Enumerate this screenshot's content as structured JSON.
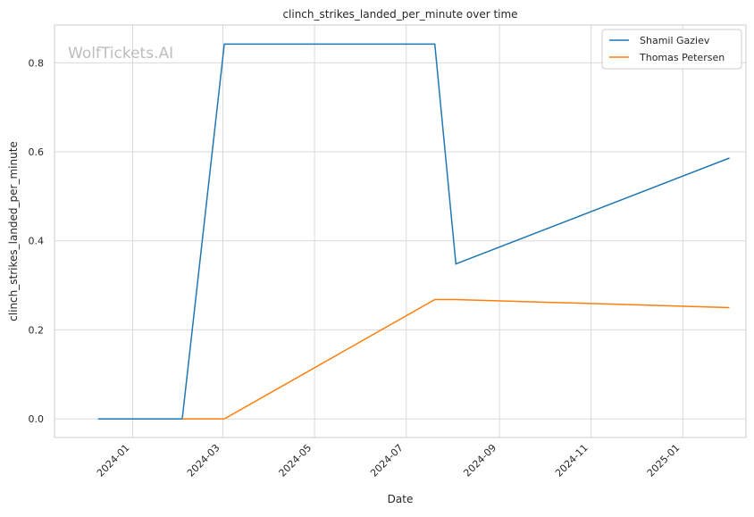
{
  "chart_data": {
    "type": "line",
    "title": "clinch_strikes_landed_per_minute over time",
    "xlabel": "Date",
    "ylabel": "clinch_strikes_landed_per_minute",
    "watermark": "WolfTickets.AI",
    "xlim": [
      "2023-11-10",
      "2025-02-12"
    ],
    "ylim": [
      -0.042,
      0.885
    ],
    "x_ticks": [
      "2024-01",
      "2024-03",
      "2024-05",
      "2024-07",
      "2024-09",
      "2024-11",
      "2025-01"
    ],
    "y_ticks": [
      "0.0",
      "0.2",
      "0.4",
      "0.6",
      "0.8"
    ],
    "grid": true,
    "legend_position": "top-right",
    "series": [
      {
        "name": "Shamil Gaziev",
        "color": "#1f77b4",
        "points": [
          {
            "x": "2023-12-09",
            "y": 0.0
          },
          {
            "x": "2024-02-03",
            "y": 0.0
          },
          {
            "x": "2024-03-02",
            "y": 0.842
          },
          {
            "x": "2024-07-20",
            "y": 0.842
          },
          {
            "x": "2024-08-03",
            "y": 0.348
          },
          {
            "x": "2025-02-01",
            "y": 0.586
          }
        ]
      },
      {
        "name": "Thomas Petersen",
        "color": "#ff7f0e",
        "points": [
          {
            "x": "2024-02-03",
            "y": 0.0
          },
          {
            "x": "2024-03-02",
            "y": 0.0
          },
          {
            "x": "2024-07-20",
            "y": 0.268
          },
          {
            "x": "2024-08-03",
            "y": 0.268
          },
          {
            "x": "2025-02-01",
            "y": 0.25
          }
        ]
      }
    ]
  }
}
